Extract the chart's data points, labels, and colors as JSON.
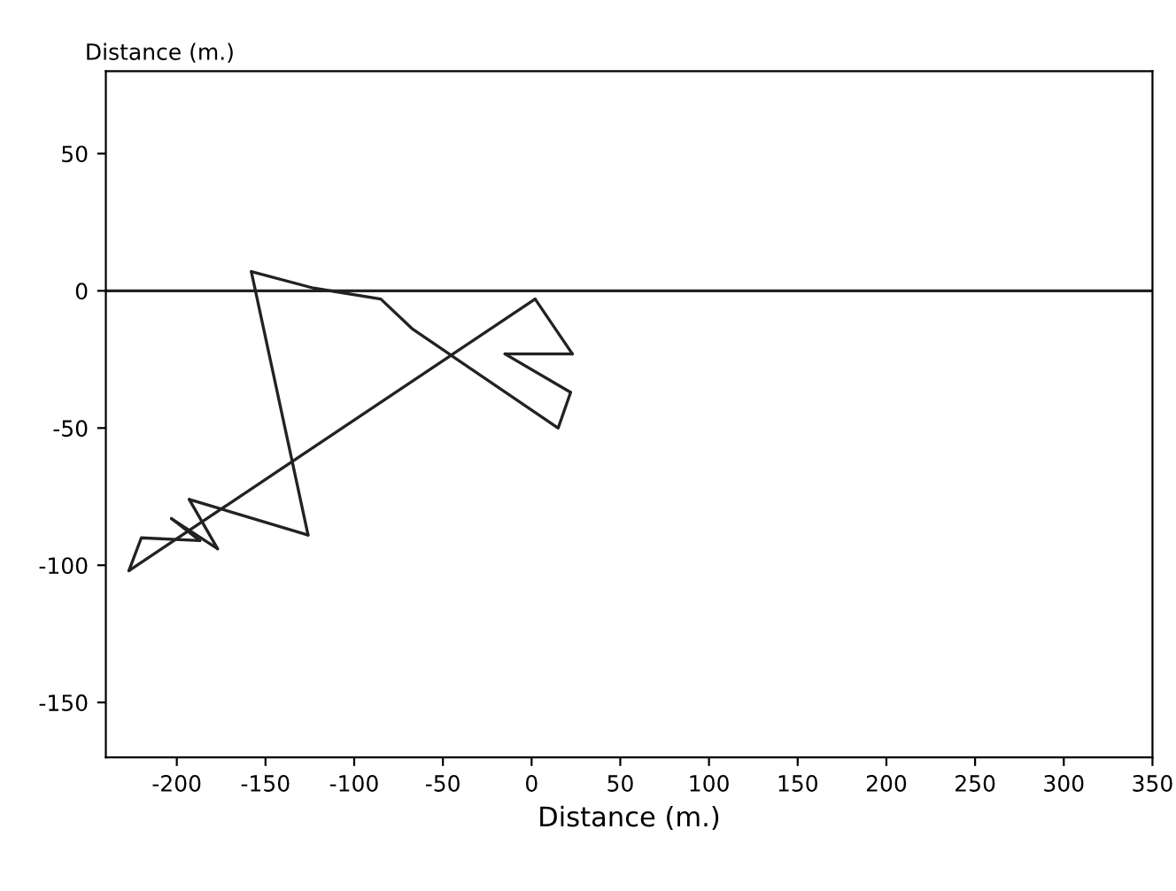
{
  "chart_data": {
    "type": "line",
    "xlabel": "Distance (m.)",
    "ylabel": "Distance (m.)",
    "series": [
      {
        "color": "#222222",
        "x": [
          2,
          23
        ],
        "values": [
          -3,
          -23
        ]
      },
      {
        "color": "#222222",
        "x": [
          23,
          -15
        ],
        "values": [
          -23,
          -23
        ]
      },
      {
        "color": "#222222",
        "x": [
          -15,
          22
        ],
        "values": [
          -23,
          -37
        ]
      },
      {
        "color": "#222222",
        "x": [
          22,
          15,
          -67,
          -85,
          -123,
          -158
        ],
        "values": [
          -37,
          -50,
          -14,
          -3,
          1,
          7
        ]
      },
      {
        "color": "#222222",
        "x": [
          -158,
          -126
        ],
        "values": [
          7,
          -89
        ]
      },
      {
        "color": "#222222",
        "x": [
          -126,
          -193
        ],
        "values": [
          -89,
          -76
        ]
      },
      {
        "color": "#222222",
        "x": [
          -193,
          -177
        ],
        "values": [
          -76,
          -94
        ]
      },
      {
        "color": "#222222",
        "x": [
          -177,
          -203
        ],
        "values": [
          -94,
          -83
        ]
      },
      {
        "color": "#222222",
        "x": [
          -203,
          -187
        ],
        "values": [
          -83,
          -91
        ]
      },
      {
        "color": "#222222",
        "x": [
          -187,
          -220,
          -227
        ],
        "values": [
          -91,
          -90,
          -102
        ]
      },
      {
        "color": "#222222",
        "x": [
          -227,
          2
        ],
        "values": [
          -102,
          -3
        ]
      }
    ],
    "marker": "none",
    "line_style": "solid",
    "grid": false,
    "xlim": [
      -240,
      350
    ],
    "ylim": [
      -170,
      80
    ],
    "xticks": [
      -200,
      -150,
      -100,
      -50,
      0,
      50,
      100,
      150,
      200,
      250,
      300,
      350
    ],
    "yticks": [
      -150,
      -100,
      -50,
      0,
      50
    ],
    "ref_lines": [
      {
        "axis": "y",
        "value": 0,
        "color": "#222222"
      }
    ]
  }
}
